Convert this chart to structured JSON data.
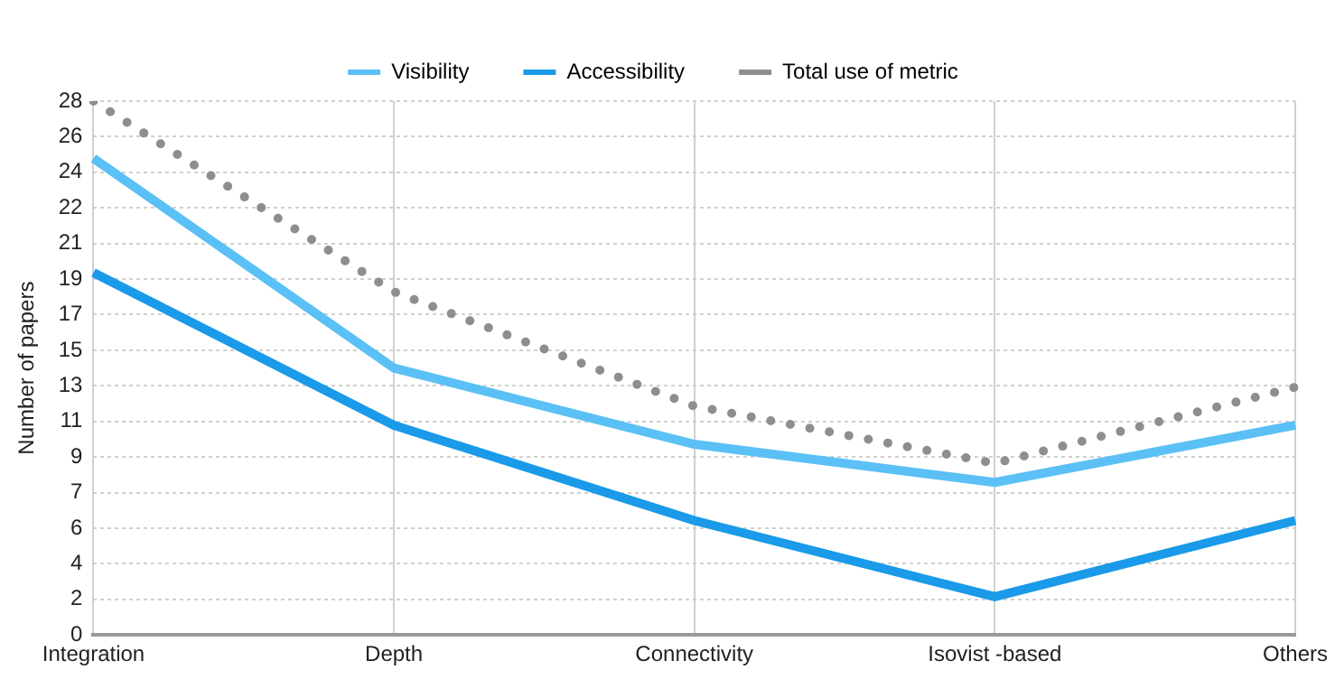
{
  "chart_data": {
    "type": "line",
    "ylabel": "Number of papers",
    "categories": [
      "Integration",
      "Depth",
      "Connectivity",
      "Isovist -based",
      "Others"
    ],
    "series": [
      {
        "name": "Visibility",
        "color": "#5bc0f5",
        "values": [
          25,
          14,
          10,
          8,
          11
        ],
        "line_style": "solid"
      },
      {
        "name": "Accessibility",
        "color": "#1a9ae8",
        "values": [
          19,
          11,
          6,
          2,
          6
        ],
        "line_style": "solid"
      },
      {
        "name": "Total use of metric",
        "color": "#8e8e8e",
        "values": [
          28,
          18,
          12,
          9,
          13
        ],
        "line_style": "dotted"
      }
    ],
    "ylim": [
      0,
      28
    ],
    "yticks": [
      0,
      {
        "value": 1.8667,
        "label": "2"
      },
      {
        "value": 3.7333,
        "label": "4"
      },
      {
        "value": 5.6,
        "label": "6"
      },
      {
        "value": 7.4667,
        "label": "7"
      },
      {
        "value": 9.3333,
        "label": "9"
      },
      {
        "value": 11.2,
        "label": "11"
      },
      {
        "value": 13.0667,
        "label": "13"
      },
      {
        "value": 14.9333,
        "label": "15"
      },
      {
        "value": 16.8,
        "label": "17"
      },
      {
        "value": 18.6667,
        "label": "19"
      },
      {
        "value": 20.5333,
        "label": "21"
      },
      {
        "value": 22.4,
        "label": "22"
      },
      {
        "value": 24.2667,
        "label": "24"
      },
      {
        "value": 26.1333,
        "label": "26"
      },
      28
    ],
    "grid": true,
    "legend": "top",
    "marker": "none"
  }
}
